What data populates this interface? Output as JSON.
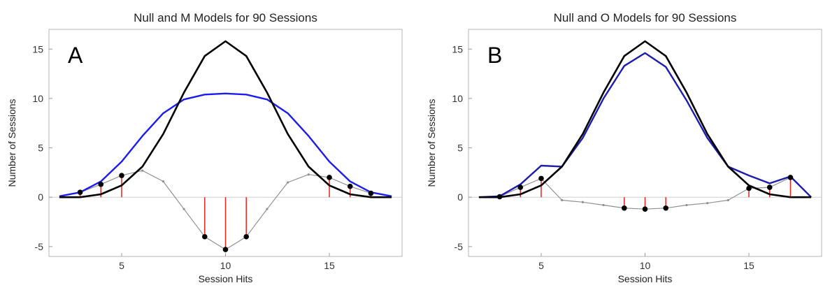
{
  "chart_data": [
    {
      "type": "line",
      "panel_label": "A",
      "title": "Null and M Models for 90 Sessions",
      "xlabel": "Session Hits",
      "ylabel": "Number of Sessions",
      "xlim": [
        1.5,
        18.5
      ],
      "ylim": [
        -6,
        17
      ],
      "xticks": [
        5,
        10,
        15
      ],
      "yticks": [
        -5,
        0,
        5,
        10,
        15
      ],
      "grid": false,
      "colors": {
        "null_model": "#000000",
        "alt_model": "#1c1cf0",
        "difference": "#909090",
        "stems": "#ee2020"
      },
      "series": [
        {
          "key": "null_model",
          "x": [
            2,
            3,
            4,
            5,
            6,
            7,
            8,
            9,
            10,
            11,
            12,
            13,
            14,
            15,
            16,
            17,
            18
          ],
          "values": [
            0.0,
            0.0,
            0.3,
            1.2,
            3.1,
            6.4,
            10.6,
            14.3,
            15.8,
            14.3,
            10.6,
            6.4,
            3.1,
            1.2,
            0.3,
            0.0,
            0.0
          ]
        },
        {
          "key": "alt_model",
          "x": [
            2,
            3,
            4,
            5,
            6,
            7,
            8,
            9,
            10,
            11,
            12,
            13,
            14,
            15,
            16,
            17,
            18
          ],
          "values": [
            0.1,
            0.5,
            1.6,
            3.6,
            6.2,
            8.5,
            9.9,
            10.4,
            10.5,
            10.4,
            9.9,
            8.5,
            6.2,
            3.6,
            1.6,
            0.5,
            0.1
          ]
        },
        {
          "key": "difference",
          "x": [
            3,
            4,
            5,
            6,
            7,
            8,
            9,
            10,
            11,
            12,
            13,
            14,
            15,
            16,
            17
          ],
          "values": [
            0.5,
            1.3,
            2.2,
            2.7,
            1.6,
            -1.2,
            -4.0,
            -5.3,
            -4.0,
            -1.2,
            1.5,
            2.3,
            2.0,
            1.1,
            0.4
          ]
        }
      ],
      "points": {
        "x": [
          3,
          4,
          5,
          9,
          10,
          11,
          15,
          16,
          17
        ],
        "values": [
          0.5,
          1.3,
          2.2,
          -4.0,
          -5.3,
          -4.0,
          2.0,
          1.1,
          0.4
        ]
      }
    },
    {
      "type": "line",
      "panel_label": "B",
      "title": "Null and O Models for 90 Sessions",
      "xlabel": "Session Hits",
      "ylabel": "Number of Sessions",
      "xlim": [
        1.5,
        18.5
      ],
      "ylim": [
        -6,
        17
      ],
      "xticks": [
        5,
        10,
        15
      ],
      "yticks": [
        -5,
        0,
        5,
        10,
        15
      ],
      "grid": false,
      "colors": {
        "null_model": "#000000",
        "alt_model": "#1c1cb0",
        "difference": "#909090",
        "stems": "#ee2020"
      },
      "series": [
        {
          "key": "null_model",
          "x": [
            2,
            3,
            4,
            5,
            6,
            7,
            8,
            9,
            10,
            11,
            12,
            13,
            14,
            15,
            16,
            17,
            18
          ],
          "values": [
            0.0,
            0.0,
            0.3,
            1.2,
            3.1,
            6.4,
            10.6,
            14.3,
            15.8,
            14.3,
            10.6,
            6.4,
            3.1,
            1.2,
            0.3,
            0.0,
            0.0
          ]
        },
        {
          "key": "alt_model",
          "x": [
            2,
            3,
            4,
            5,
            6,
            7,
            8,
            9,
            10,
            11,
            12,
            13,
            14,
            15,
            16,
            17,
            18
          ],
          "values": [
            0.0,
            0.1,
            1.3,
            3.2,
            3.1,
            6.0,
            10.0,
            13.3,
            14.6,
            13.2,
            9.8,
            6.0,
            3.1,
            2.2,
            1.4,
            2.1,
            0.0
          ]
        },
        {
          "key": "difference",
          "x": [
            3,
            4,
            5,
            6,
            7,
            8,
            9,
            10,
            11,
            12,
            13,
            14,
            15,
            16,
            17
          ],
          "values": [
            0.05,
            1.0,
            1.9,
            -0.3,
            -0.5,
            -0.8,
            -1.1,
            -1.2,
            -1.1,
            -0.8,
            -0.6,
            -0.3,
            0.9,
            1.0,
            2.0
          ]
        }
      ],
      "points": {
        "x": [
          3,
          4,
          5,
          9,
          10,
          11,
          15,
          16,
          17
        ],
        "values": [
          0.05,
          1.0,
          1.9,
          -1.1,
          -1.2,
          -1.1,
          0.9,
          1.0,
          2.0
        ]
      }
    }
  ]
}
